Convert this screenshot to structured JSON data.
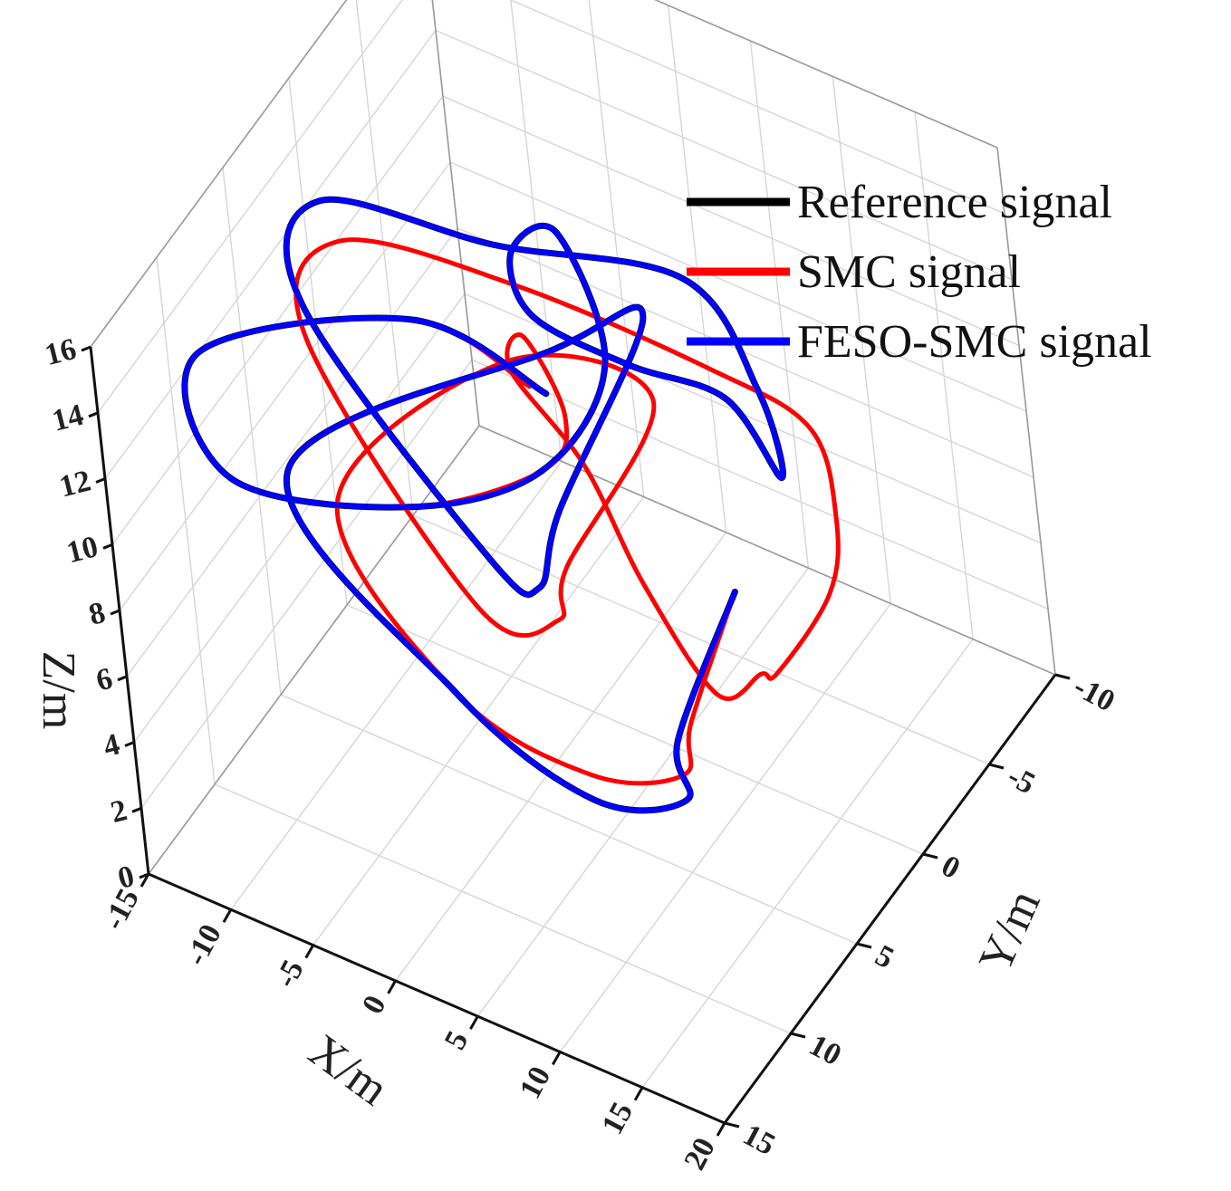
{
  "chart_data": {
    "type": "line",
    "projection": "3d",
    "grid": true,
    "legend_placement": "top-right",
    "axes": {
      "x": {
        "label": "X/m",
        "range": [
          -15,
          20
        ],
        "ticks": [
          -15,
          -10,
          -5,
          0,
          5,
          10,
          15,
          20
        ]
      },
      "y": {
        "label": "Y/m",
        "range": [
          -10,
          15
        ],
        "ticks": [
          -10,
          -5,
          0,
          5,
          10,
          15
        ]
      },
      "z": {
        "label": "Z/m",
        "range": [
          0,
          16
        ],
        "ticks": [
          0,
          2,
          4,
          6,
          8,
          10,
          12,
          14,
          16
        ]
      }
    },
    "series": [
      {
        "name": "Reference signal",
        "color": "#000000",
        "points": [
          [
            5,
            -5,
            2
          ],
          [
            10,
            5,
            4
          ],
          [
            15,
            10,
            6
          ],
          [
            12,
            13,
            7
          ],
          [
            2,
            11,
            7
          ],
          [
            -12,
            6,
            8
          ],
          [
            0,
            0,
            11
          ],
          [
            3,
            -3,
            11
          ],
          [
            7,
            8,
            12
          ],
          [
            10,
            13,
            13
          ],
          [
            8,
            14,
            14
          ],
          [
            -8,
            8,
            15
          ],
          [
            -12,
            2,
            14
          ],
          [
            -5,
            -2,
            12
          ],
          [
            1,
            -8,
            9
          ],
          [
            3,
            -10,
            5
          ],
          [
            2,
            -12,
            1
          ],
          [
            -2,
            -13,
            2
          ],
          [
            -5,
            -10,
            4
          ],
          [
            -6,
            -5,
            8
          ],
          [
            -4,
            -2,
            12
          ],
          [
            0,
            -1,
            14
          ],
          [
            8,
            5,
            15
          ],
          [
            10,
            12,
            16
          ],
          [
            5,
            16,
            16
          ],
          [
            -8,
            14,
            13
          ],
          [
            -15,
            8,
            12
          ],
          [
            -5,
            4,
            13
          ],
          [
            5,
            6,
            14
          ]
        ]
      },
      {
        "name": "SMC signal",
        "color": "#ff0000",
        "points": [
          [
            5,
            -5,
            2
          ],
          [
            10,
            4,
            4
          ],
          [
            14,
            9,
            6
          ],
          [
            11,
            12,
            7
          ],
          [
            2,
            11,
            7
          ],
          [
            -10,
            5,
            7
          ],
          [
            -3,
            0,
            10
          ],
          [
            5,
            -1,
            10
          ],
          [
            8,
            9,
            11
          ],
          [
            12,
            14,
            13
          ],
          [
            8,
            15,
            13
          ],
          [
            -8,
            8,
            14
          ],
          [
            -11,
            2,
            13
          ],
          [
            -4,
            -2,
            11
          ],
          [
            4,
            -6,
            8
          ],
          [
            8,
            -8,
            6
          ],
          [
            11,
            -6,
            5
          ],
          [
            12,
            -4,
            4
          ],
          [
            11,
            -1,
            3
          ],
          [
            9,
            -2,
            2
          ],
          [
            9,
            1,
            3
          ],
          [
            7,
            3,
            7
          ],
          [
            4,
            3,
            10
          ],
          [
            0,
            3,
            12
          ],
          [
            2,
            4,
            14
          ],
          [
            8,
            8,
            15
          ],
          [
            10,
            12,
            16
          ],
          [
            5,
            16,
            16
          ],
          [
            -8,
            14,
            13
          ],
          [
            -15,
            8,
            12
          ],
          [
            -5,
            4,
            13
          ],
          [
            4,
            6,
            14
          ]
        ]
      },
      {
        "name": "FESO-SMC signal",
        "color": "#0000ff",
        "points": [
          [
            5,
            -5,
            2
          ],
          [
            10,
            5,
            4
          ],
          [
            15,
            10,
            6
          ],
          [
            12,
            13,
            7
          ],
          [
            2,
            11,
            7
          ],
          [
            -12,
            6,
            8
          ],
          [
            0,
            0,
            11
          ],
          [
            3,
            -3,
            11
          ],
          [
            7,
            8,
            12
          ],
          [
            10,
            13,
            13
          ],
          [
            8,
            14,
            14
          ],
          [
            -8,
            8,
            15
          ],
          [
            -12,
            2,
            14
          ],
          [
            -5,
            -2,
            12
          ],
          [
            1,
            -8,
            9
          ],
          [
            3,
            -10,
            5
          ],
          [
            2,
            -12,
            1
          ],
          [
            -2,
            -13,
            2
          ],
          [
            -5,
            -10,
            4
          ],
          [
            -6,
            -5,
            8
          ],
          [
            -4,
            -2,
            12
          ],
          [
            0,
            -1,
            14
          ],
          [
            8,
            5,
            15
          ],
          [
            10,
            12,
            16
          ],
          [
            5,
            16,
            16
          ],
          [
            -8,
            14,
            13
          ],
          [
            -15,
            8,
            12
          ],
          [
            -5,
            4,
            13
          ],
          [
            5,
            6,
            14
          ]
        ]
      }
    ]
  }
}
